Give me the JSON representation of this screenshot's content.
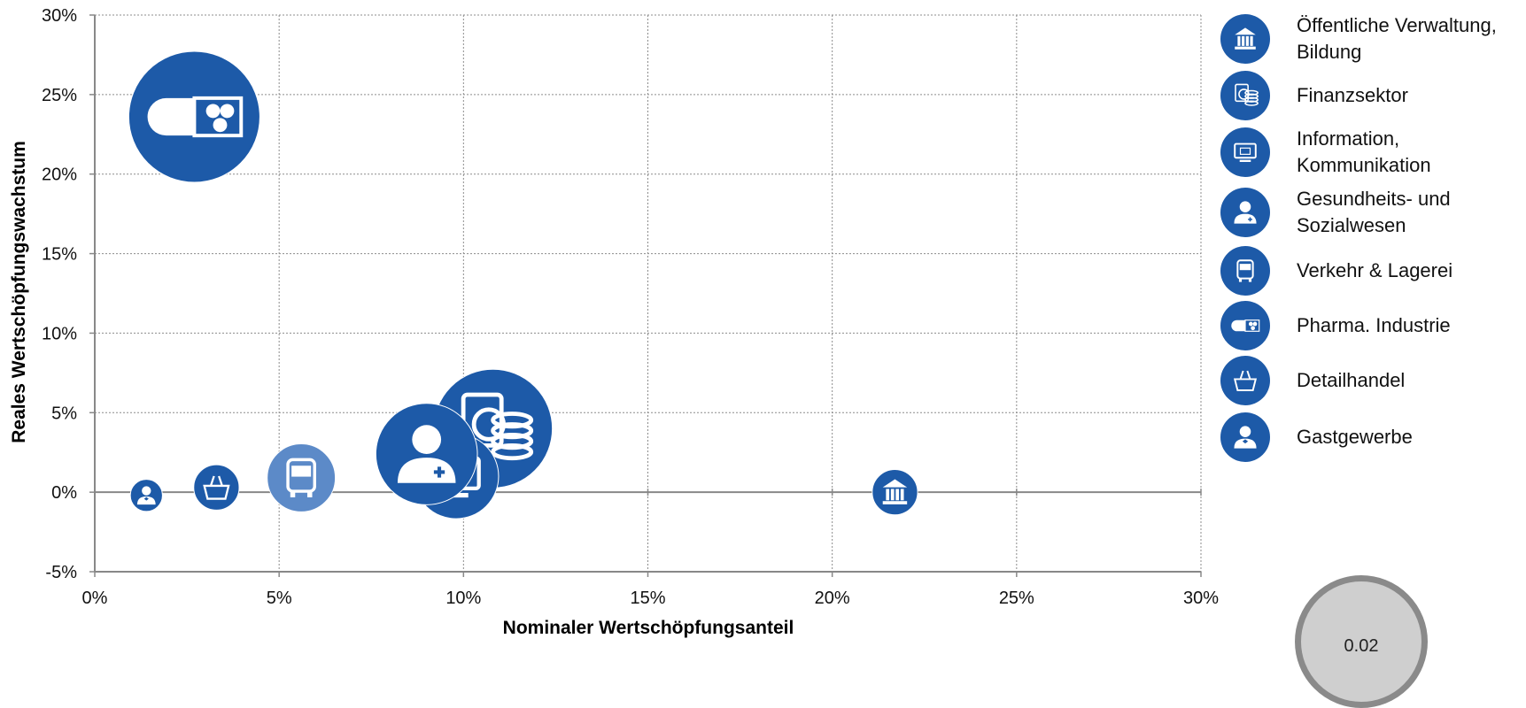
{
  "chart_data": {
    "type": "scatter",
    "title": "",
    "xlabel": "Nominaler Wertschöpfungsanteil",
    "ylabel": "Reales  Wertschöpfungswachstum",
    "xlim": [
      0,
      30
    ],
    "ylim": [
      -5,
      30
    ],
    "x_ticks": [
      "0%",
      "5%",
      "10%",
      "15%",
      "20%",
      "25%",
      "30%"
    ],
    "y_ticks": [
      "30%",
      "25%",
      "20%",
      "15%",
      "10%",
      "5%",
      "0%",
      "-5%"
    ],
    "grid": true,
    "legend_position": "right",
    "bubble_color": "#1d5aa8",
    "points": [
      {
        "name": "Pharma. Industrie",
        "icon": "pill-icon",
        "x": 2.7,
        "y": 23.6,
        "size": 1.0,
        "color": "#1d5aa8"
      },
      {
        "name": "Finanzsektor",
        "icon": "finance-icon",
        "x": 10.8,
        "y": 4.0,
        "size": 0.82,
        "color": "#1d5aa8"
      },
      {
        "name": "Information, Kommunikation",
        "icon": "computer-mail-icon",
        "x": 9.8,
        "y": 1.0,
        "size": 0.42,
        "color": "#1d5aa8"
      },
      {
        "name": "Gesundheits- und Sozialwesen",
        "icon": "doctor-icon",
        "x": 9.0,
        "y": 2.4,
        "size": 0.6,
        "color": "#1d5aa8"
      },
      {
        "name": "Verkehr & Lagerei",
        "icon": "bus-icon",
        "x": 5.6,
        "y": 0.9,
        "size": 0.27,
        "color": "#5c8ac8"
      },
      {
        "name": "Detailhandel",
        "icon": "basket-icon",
        "x": 3.3,
        "y": 0.3,
        "size": 0.12,
        "color": "#1d5aa8"
      },
      {
        "name": "Gastgewerbe",
        "icon": "waiter-icon",
        "x": 1.4,
        "y": -0.2,
        "size": 0.06,
        "color": "#1d5aa8"
      },
      {
        "name": "Öffentliche Verwaltung, Bildung",
        "icon": "government-icon",
        "x": 21.7,
        "y": 0.0,
        "size": 0.12,
        "color": "#1d5aa8"
      }
    ]
  },
  "legend": [
    {
      "label": "Öffentliche Verwaltung, Bildung",
      "icon": "government-icon"
    },
    {
      "label": "Finanzsektor",
      "icon": "finance-icon"
    },
    {
      "label": "Information, Kommunikation",
      "icon": "computer-mail-icon"
    },
    {
      "label": "Gesundheits- und Sozialwesen",
      "icon": "doctor-icon"
    },
    {
      "label": "Verkehr & Lagerei",
      "icon": "bus-icon"
    },
    {
      "label": "Pharma. Industrie",
      "icon": "pill-icon"
    },
    {
      "label": "Detailhandel",
      "icon": "basket-icon"
    },
    {
      "label": "Gastgewerbe",
      "icon": "waiter-icon"
    }
  ],
  "size_legend": {
    "label": "0.02"
  }
}
